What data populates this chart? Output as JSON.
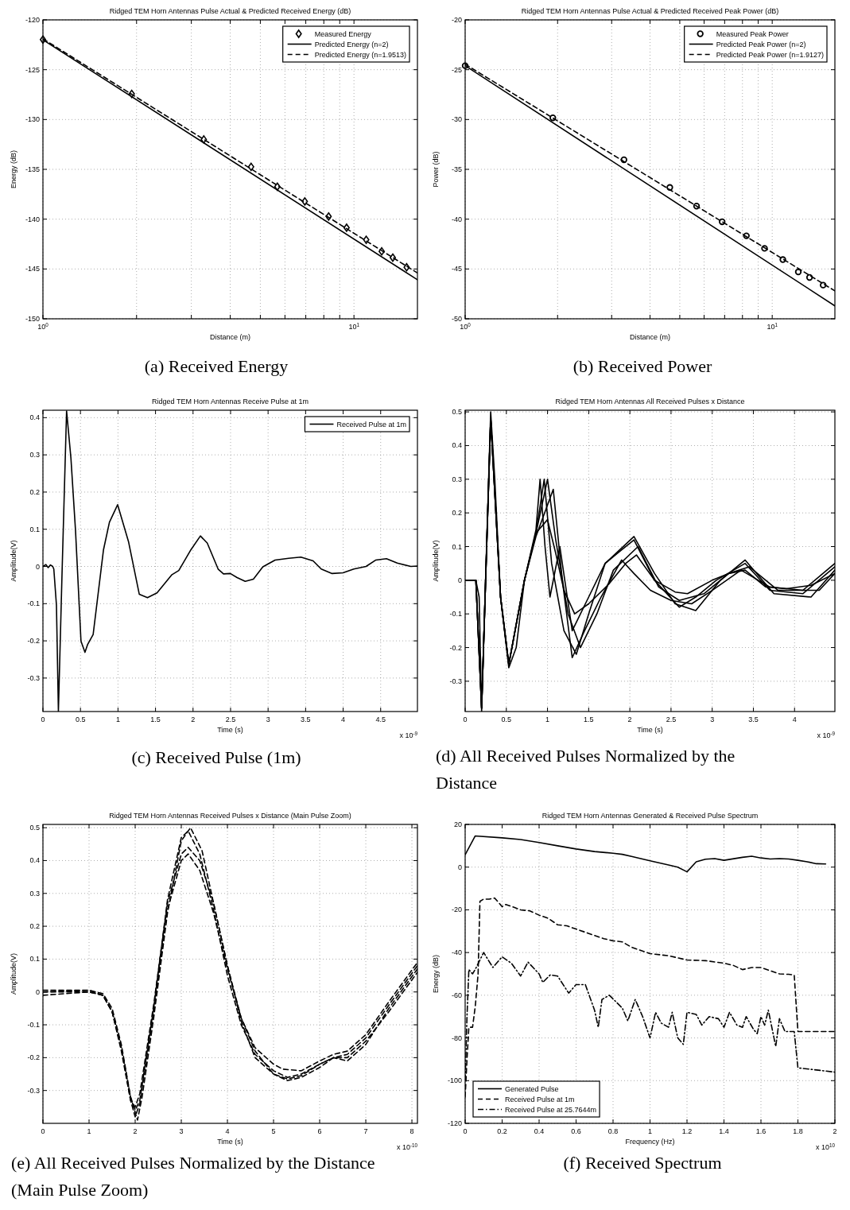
{
  "chart_data": [
    {
      "type": "line",
      "title": "Ridged TEM Horn Antennas Pulse Actual & Predicted Received Energy (dB)",
      "xlabel": "Distance (m)",
      "ylabel": "Energy (dB)",
      "log": "x",
      "grid": true,
      "legend": "top right",
      "xlim": [
        1,
        16
      ],
      "ylim": [
        -150,
        -120
      ],
      "xticks": [
        {
          "value": 1,
          "label": "10$^{0}$"
        },
        {
          "value": 2,
          "label": null
        },
        {
          "value": 3,
          "label": null
        },
        {
          "value": 4,
          "label": null
        },
        {
          "value": 5,
          "label": null
        },
        {
          "value": 6,
          "label": null
        },
        {
          "value": 7,
          "label": null
        },
        {
          "value": 8,
          "label": null
        },
        {
          "value": 9,
          "label": null
        },
        {
          "value": 10,
          "label": "10$^{1}$"
        }
      ],
      "yticks": [
        -150,
        -145,
        -140,
        -135,
        -130,
        -125,
        -120
      ],
      "annotations": [
        "(a) Received Energy"
      ],
      "series": [
        {
          "name": "Measured Energy",
          "type": "scatter",
          "marker": "diamond",
          "color": "#000000",
          "x": [
            1,
            1.93,
            3.29,
            4.67,
            5.67,
            6.95,
            8.29,
            9.47,
            10.95,
            12.28,
            13.33,
            14.77
          ],
          "values": [
            -121.98,
            -127.43,
            -132.0,
            -134.75,
            -136.74,
            -138.22,
            -139.73,
            -140.86,
            -142.07,
            -143.23,
            -143.86,
            -144.83
          ]
        },
        {
          "name": "Predicted Energy (n=2)",
          "color": "#000000",
          "line_style": "solid",
          "x": [
            1,
            16
          ],
          "values": [
            -122,
            -146.08
          ]
        },
        {
          "name": "Predicted Energy (n=1.9513)",
          "color": "#000000",
          "line_style": "dashed",
          "x": [
            1,
            16
          ],
          "values": [
            -121.9,
            -145.4
          ]
        }
      ]
    },
    {
      "type": "line",
      "title": "Ridged TEM Horn Antennas Pulse Actual & Predicted Received Peak Power (dB)",
      "xlabel": "Distance (m)",
      "ylabel": "Power (dB)",
      "log": "x",
      "grid": true,
      "legend": "top right",
      "xlim": [
        1,
        16
      ],
      "ylim": [
        -50,
        -20
      ],
      "xticks": [
        {
          "value": 1,
          "label": "10$^{0}$"
        },
        {
          "value": 2,
          "label": null
        },
        {
          "value": 3,
          "label": null
        },
        {
          "value": 4,
          "label": null
        },
        {
          "value": 5,
          "label": null
        },
        {
          "value": 6,
          "label": null
        },
        {
          "value": 7,
          "label": null
        },
        {
          "value": 8,
          "label": null
        },
        {
          "value": 9,
          "label": null
        },
        {
          "value": 10,
          "label": "10$^{1}$"
        }
      ],
      "yticks": [
        -50,
        -45,
        -40,
        -35,
        -30,
        -25,
        -20
      ],
      "annotations": [
        "(b) Received Power"
      ],
      "series": [
        {
          "name": "Measured Peak Power",
          "type": "scatter",
          "marker": "circle",
          "color": "#000000",
          "x": [
            1,
            1.93,
            3.29,
            4.64,
            5.67,
            6.87,
            8.24,
            9.44,
            10.83,
            12.16,
            13.23,
            14.65
          ],
          "values": [
            -24.6,
            -29.83,
            -34.04,
            -36.82,
            -38.69,
            -40.26,
            -41.67,
            -42.93,
            -44.06,
            -45.3,
            -45.85,
            -46.62
          ]
        },
        {
          "name": "Predicted Peak Power (n=2)",
          "color": "#000000",
          "line_style": "solid",
          "x": [
            1,
            16
          ],
          "values": [
            -24.6,
            -48.7
          ]
        },
        {
          "name": "Predicted Peak Power (n=1.9127)",
          "color": "#000000",
          "line_style": "dashed",
          "x": [
            1,
            16
          ],
          "values": [
            -24.45,
            -47.2
          ]
        }
      ]
    },
    {
      "type": "line",
      "title": "Ridged TEM Horn Antennas Receive Pulse at 1m",
      "xlabel": "Time (s)",
      "ylabel": "Amplitude(V)",
      "grid": true,
      "legend": "top right",
      "xlim": [
        0,
        4.99
      ],
      "ylim": [
        -0.39,
        0.42
      ],
      "xticks": [
        0,
        0.5,
        1,
        1.5,
        2,
        2.5,
        3,
        3.5,
        4,
        4.5
      ],
      "yticks": [
        -0.3,
        -0.2,
        -0.1,
        0,
        0.1,
        0.2,
        0.3,
        0.4
      ],
      "annotations": [
        "(c) Received Pulse (1m)",
        "x 10$^{-9}$"
      ],
      "series": [
        {
          "name": "Received Pulse at 1m",
          "color": "#000000",
          "line_style": "solid",
          "x": [
            0,
            0.04,
            0.07,
            0.1,
            0.13,
            0.145,
            0.18,
            0.206,
            0.253,
            0.315,
            0.373,
            0.434,
            0.507,
            0.56,
            0.597,
            0.669,
            0.807,
            0.886,
            0.995,
            1.14,
            1.284,
            1.393,
            1.52,
            1.719,
            1.81,
            1.972,
            2.098,
            2.189,
            2.334,
            2.406,
            2.496,
            2.587,
            2.695,
            2.804,
            2.93,
            3.093,
            3.274,
            3.437,
            3.6,
            3.708,
            3.853,
            3.998,
            4.142,
            4.305,
            4.432,
            4.577,
            4.721,
            4.902,
            4.99
          ],
          "values": [
            0,
            0.005,
            -0.003,
            0.004,
            0,
            -0.007,
            -0.104,
            -0.39,
            -0.03,
            0.418,
            0.291,
            0.097,
            -0.201,
            -0.231,
            -0.209,
            -0.183,
            0.045,
            0.119,
            0.166,
            0.067,
            -0.075,
            -0.084,
            -0.071,
            -0.022,
            -0.011,
            0.045,
            0.082,
            0.063,
            -0.007,
            -0.02,
            -0.019,
            -0.03,
            -0.04,
            -0.034,
            -0.001,
            0.017,
            0.022,
            0.025,
            0.015,
            -0.007,
            -0.019,
            -0.017,
            -0.007,
            0,
            0.017,
            0.021,
            0.009,
            0,
            0.001
          ]
        }
      ]
    },
    {
      "type": "line",
      "title": "Ridged TEM Horn Antennas All Received Pulses x Distance",
      "xlabel": "Time (s)",
      "ylabel": "Amplitude(V)",
      "grid": true,
      "xlim": [
        0,
        4.49
      ],
      "ylim": [
        -0.39,
        0.505
      ],
      "xticks": [
        0,
        0.5,
        1,
        1.5,
        2,
        2.5,
        3,
        3.5,
        4
      ],
      "yticks": [
        -0.3,
        -0.2,
        -0.1,
        0,
        0.1,
        0.2,
        0.3,
        0.4,
        0.5
      ],
      "annotations": [
        "(d) All Received Pulses Normalized by the Distance",
        "x 10$^{-9}$"
      ],
      "series": [
        {
          "color": "#000000",
          "line_style": "solid",
          "x": [
            0,
            0.13,
            0.17,
            0.2,
            0.26,
            0.31,
            0.36,
            0.43,
            0.53,
            0.62,
            0.72,
            0.86,
            1.0,
            1.1,
            1.2,
            1.33,
            1.5,
            1.75,
            1.95,
            2.08,
            2.3,
            2.55,
            2.7,
            3.0,
            3.2,
            3.4,
            3.65,
            3.9,
            4.2,
            4.49
          ],
          "values": [
            0,
            0,
            -0.05,
            -0.39,
            0.1,
            0.5,
            0.3,
            -0.05,
            -0.26,
            -0.2,
            0,
            0.14,
            0.18,
            0.08,
            -0.03,
            -0.1,
            -0.07,
            -0.01,
            0.05,
            0.075,
            0,
            -0.035,
            -0.04,
            0,
            0.02,
            0.03,
            -0.02,
            -0.025,
            -0.015,
            0.02
          ]
        },
        {
          "color": "#000000",
          "line_style": "solid",
          "x": [
            0,
            0.13,
            0.2,
            0.31,
            0.43,
            0.53,
            0.72,
            0.86,
            0.91,
            0.97,
            1.03,
            1.15,
            1.3,
            1.5,
            1.7,
            1.85,
            2.05,
            2.3,
            2.6,
            2.8,
            3.05,
            3.4,
            3.7,
            4.1,
            4.49
          ],
          "values": [
            0,
            0,
            -0.38,
            0.48,
            -0.05,
            -0.25,
            0,
            0.15,
            0.3,
            0.1,
            -0.05,
            0.1,
            -0.15,
            -0.05,
            0.05,
            0.08,
            0.12,
            0,
            -0.08,
            -0.05,
            0,
            0.05,
            -0.03,
            -0.04,
            0.04
          ]
        },
        {
          "color": "#000000",
          "line_style": "solid",
          "x": [
            0,
            0.13,
            0.2,
            0.31,
            0.43,
            0.53,
            0.72,
            0.86,
            0.96,
            1.05,
            1.2,
            1.35,
            1.5,
            1.7,
            2.05,
            2.3,
            2.55,
            2.8,
            3.1,
            3.4,
            3.75,
            4.2,
            4.49
          ],
          "values": [
            0,
            0,
            -0.38,
            0.48,
            -0.05,
            -0.25,
            0,
            0.14,
            0.3,
            0.05,
            -0.15,
            -0.22,
            -0.1,
            0.05,
            0.13,
            0.02,
            -0.07,
            -0.09,
            0,
            0.06,
            -0.04,
            -0.05,
            0.03
          ]
        },
        {
          "color": "#000000",
          "line_style": "solid",
          "x": [
            0,
            0.13,
            0.2,
            0.31,
            0.43,
            0.53,
            0.72,
            0.86,
            1.0,
            1.1,
            1.25,
            1.4,
            1.6,
            1.8,
            2.1,
            2.35,
            2.6,
            2.9,
            3.2,
            3.45,
            3.8,
            4.3,
            4.49
          ],
          "values": [
            0,
            0,
            -0.38,
            0.48,
            -0.05,
            -0.25,
            0,
            0.14,
            0.3,
            0.12,
            -0.1,
            -0.2,
            -0.1,
            0.03,
            0.1,
            -0.02,
            -0.06,
            -0.04,
            0.02,
            0.04,
            -0.03,
            -0.03,
            0.02
          ]
        },
        {
          "color": "#000000",
          "line_style": "solid",
          "x": [
            0,
            0.13,
            0.2,
            0.31,
            0.43,
            0.53,
            0.72,
            0.86,
            1.07,
            1.18,
            1.3,
            1.45,
            1.65,
            1.9,
            2.05,
            2.25,
            2.5,
            2.75,
            3.0,
            3.35,
            3.7,
            4.1,
            4.49
          ],
          "values": [
            0,
            0,
            -0.38,
            0.48,
            -0.05,
            -0.25,
            0,
            0.13,
            0.27,
            0,
            -0.23,
            -0.15,
            -0.05,
            0.06,
            0.02,
            -0.03,
            -0.06,
            -0.07,
            -0.03,
            0.03,
            -0.02,
            -0.03,
            0.05
          ]
        }
      ]
    },
    {
      "type": "line",
      "title": "Ridged TEM Horn Antennas Received Pulses x Distance (Main Pulse Zoom)",
      "xlabel": "Time (s)",
      "ylabel": "Amplitude(V)",
      "grid": true,
      "xlim": [
        0,
        8.12
      ],
      "ylim": [
        -0.4,
        0.51
      ],
      "xticks": [
        0,
        1,
        2,
        3,
        4,
        5,
        6,
        7,
        8
      ],
      "yticks": [
        -0.3,
        -0.2,
        -0.1,
        0,
        0.1,
        0.2,
        0.3,
        0.4,
        0.5
      ],
      "annotations": [
        "(e) All Received Pulses Normalized by the Distance (Main Pulse Zoom)",
        "x 10$^{-10}$"
      ],
      "series": [
        {
          "color": "#000000",
          "line_style": "dashed",
          "x": [
            0,
            1.0,
            1.3,
            1.5,
            1.7,
            1.9,
            2.0,
            2.1,
            2.4,
            2.7,
            3.0,
            3.15,
            3.4,
            3.7,
            4.0,
            4.3,
            4.6,
            5.0,
            5.3,
            5.6,
            6.0,
            6.3,
            6.6,
            7.0,
            7.5,
            8.12
          ],
          "values": [
            0,
            0,
            -0.01,
            -0.06,
            -0.17,
            -0.32,
            -0.36,
            -0.33,
            -0.05,
            0.28,
            0.47,
            0.49,
            0.42,
            0.25,
            0.05,
            -0.1,
            -0.19,
            -0.24,
            -0.26,
            -0.25,
            -0.22,
            -0.2,
            -0.19,
            -0.14,
            -0.04,
            0.08
          ]
        },
        {
          "color": "#000000",
          "line_style": "dashed",
          "x": [
            0,
            1.0,
            1.3,
            1.5,
            1.7,
            1.9,
            2.0,
            2.1,
            2.4,
            2.7,
            3.0,
            3.15,
            3.4,
            3.7,
            4.0,
            4.3,
            4.6,
            5.0,
            5.2,
            5.6,
            6.0,
            6.3,
            6.6,
            7.0,
            7.5,
            8.12
          ],
          "values": [
            -0.01,
            0,
            -0.01,
            -0.06,
            -0.17,
            -0.33,
            -0.38,
            -0.34,
            -0.06,
            0.25,
            0.4,
            0.42,
            0.37,
            0.24,
            0.07,
            -0.08,
            -0.17,
            -0.22,
            -0.235,
            -0.24,
            -0.21,
            -0.19,
            -0.18,
            -0.13,
            -0.03,
            0.09
          ]
        },
        {
          "color": "#000000",
          "line_style": "dashed",
          "x": [
            0,
            1.0,
            1.3,
            1.5,
            1.7,
            1.9,
            2.0,
            2.1,
            2.4,
            2.7,
            3.0,
            3.15,
            3.4,
            3.7,
            4.0,
            4.3,
            4.6,
            5.0,
            5.3,
            5.6,
            6.0,
            6.3,
            6.6,
            7.0,
            7.5,
            8.12
          ],
          "values": [
            0,
            0.005,
            -0.01,
            -0.06,
            -0.18,
            -0.33,
            -0.35,
            -0.31,
            -0.04,
            0.27,
            0.42,
            0.44,
            0.4,
            0.27,
            0.08,
            -0.09,
            -0.2,
            -0.25,
            -0.27,
            -0.26,
            -0.23,
            -0.2,
            -0.2,
            -0.15,
            -0.06,
            0.06
          ]
        },
        {
          "color": "#000000",
          "line_style": "dashed",
          "x": [
            0,
            1.0,
            1.3,
            1.5,
            1.7,
            1.9,
            2.05,
            2.15,
            2.4,
            2.7,
            3.0,
            3.2,
            3.45,
            3.7,
            4.0,
            4.3,
            4.6,
            5.0,
            5.3,
            5.6,
            6.0,
            6.3,
            6.6,
            7.0,
            7.5,
            8.12
          ],
          "values": [
            0.005,
            0.005,
            -0.005,
            -0.05,
            -0.16,
            -0.32,
            -0.39,
            -0.32,
            -0.08,
            0.24,
            0.46,
            0.5,
            0.43,
            0.27,
            0.08,
            -0.08,
            -0.18,
            -0.25,
            -0.265,
            -0.255,
            -0.22,
            -0.2,
            -0.21,
            -0.16,
            -0.05,
            0.07
          ]
        }
      ]
    },
    {
      "type": "line",
      "title": "Ridged TEM Horn Antennas Generated & Received Pulse Spectrum",
      "xlabel": "Frequency (Hz)",
      "ylabel": "Energy (dB)",
      "grid": true,
      "legend": "bottom left",
      "xlim": [
        0,
        2
      ],
      "ylim": [
        -120,
        20
      ],
      "xticks": [
        0,
        0.2,
        0.4,
        0.6,
        0.8,
        1,
        1.2,
        1.4,
        1.6,
        1.8,
        2
      ],
      "yticks": [
        -120,
        -100,
        -80,
        -60,
        -40,
        -20,
        0,
        20
      ],
      "annotations": [
        "(f) Received Spectrum",
        "x 10$^{10}$"
      ],
      "series": [
        {
          "name": "Generated Pulse",
          "color": "#000000",
          "line_style": "solid",
          "x": [
            0,
            0.054,
            0.2,
            0.3,
            0.4,
            0.5,
            0.6,
            0.7,
            0.8,
            0.85,
            0.9,
            1.0,
            1.1,
            1.15,
            1.2,
            1.25,
            1.3,
            1.35,
            1.4,
            1.5,
            1.55,
            1.6,
            1.65,
            1.7,
            1.75,
            1.8,
            1.85,
            1.9,
            1.95
          ],
          "values": [
            5.8,
            14.6,
            13.7,
            12.9,
            11.5,
            10,
            8.5,
            7.3,
            6.5,
            6,
            5,
            3,
            1,
            0,
            -2.2,
            2.5,
            3.7,
            4,
            3.2,
            4.6,
            5.1,
            4.3,
            3.8,
            4,
            3.8,
            3.2,
            2.5,
            1.6,
            1.5
          ]
        },
        {
          "name": "Received Pulse at 1m",
          "color": "#000000",
          "line_style": "dashed",
          "x": [
            0,
            0.01,
            0.02,
            0.04,
            0.055,
            0.07,
            0.08,
            0.1,
            0.13,
            0.16,
            0.2,
            0.22,
            0.27,
            0.3,
            0.35,
            0.4,
            0.45,
            0.5,
            0.55,
            0.6,
            0.65,
            0.7,
            0.75,
            0.8,
            0.85,
            0.9,
            1.0,
            1.1,
            1.2,
            1.3,
            1.4,
            1.45,
            1.5,
            1.55,
            1.6,
            1.65,
            1.7,
            1.75,
            1.78,
            1.8,
            2.0
          ],
          "values": [
            -107.7,
            -90,
            -75,
            -75,
            -65,
            -50,
            -16,
            -15,
            -15,
            -14.5,
            -18.5,
            -17.5,
            -19,
            -20,
            -20.5,
            -22.5,
            -24,
            -27,
            -27.5,
            -29,
            -30.5,
            -32,
            -33.5,
            -34.5,
            -35,
            -37.5,
            -40.5,
            -41.5,
            -43.5,
            -43.8,
            -45,
            -46,
            -48,
            -47,
            -47,
            -48.5,
            -50,
            -50.2,
            -50.5,
            -77,
            -77
          ]
        },
        {
          "name": "Received Pulse at 25.7644m",
          "color": "#000000",
          "line_style": "dashdot",
          "x": [
            0,
            0.01,
            0.02,
            0.04,
            0.06,
            0.1,
            0.15,
            0.2,
            0.25,
            0.3,
            0.34,
            0.4,
            0.42,
            0.46,
            0.5,
            0.56,
            0.6,
            0.65,
            0.7,
            0.72,
            0.74,
            0.78,
            0.85,
            0.88,
            0.92,
            0.96,
            1.0,
            1.03,
            1.06,
            1.1,
            1.12,
            1.15,
            1.18,
            1.2,
            1.25,
            1.28,
            1.32,
            1.37,
            1.4,
            1.43,
            1.47,
            1.5,
            1.52,
            1.56,
            1.58,
            1.6,
            1.62,
            1.64,
            1.68,
            1.7,
            1.73,
            1.78,
            1.8,
            2.0
          ],
          "values": [
            -100,
            -70,
            -48,
            -50,
            -47,
            -40,
            -47,
            -42,
            -45,
            -51,
            -44.5,
            -50,
            -54,
            -50.5,
            -51,
            -59,
            -55,
            -55,
            -67,
            -75,
            -62,
            -60,
            -66,
            -72,
            -62,
            -70,
            -80,
            -68,
            -73,
            -75,
            -68,
            -80,
            -83,
            -68,
            -69,
            -74,
            -70,
            -71,
            -75,
            -68,
            -74,
            -75,
            -70,
            -76,
            -78,
            -70,
            -74,
            -67,
            -84,
            -71,
            -77,
            -77,
            -94,
            -96
          ]
        }
      ]
    }
  ]
}
